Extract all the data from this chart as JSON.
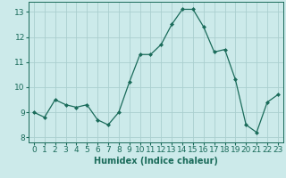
{
  "x": [
    0,
    1,
    2,
    3,
    4,
    5,
    6,
    7,
    8,
    9,
    10,
    11,
    12,
    13,
    14,
    15,
    16,
    17,
    18,
    19,
    20,
    21,
    22,
    23
  ],
  "y": [
    9.0,
    8.8,
    9.5,
    9.3,
    9.2,
    9.3,
    8.7,
    8.5,
    9.0,
    10.2,
    11.3,
    11.3,
    11.7,
    12.5,
    13.1,
    13.1,
    12.4,
    11.4,
    11.5,
    10.3,
    8.5,
    8.2,
    9.4,
    9.7
  ],
  "xlabel": "Humidex (Indice chaleur)",
  "ylabel": "",
  "xlim": [
    -0.5,
    23.5
  ],
  "ylim": [
    7.8,
    13.4
  ],
  "yticks": [
    8,
    9,
    10,
    11,
    12,
    13
  ],
  "xticks": [
    0,
    1,
    2,
    3,
    4,
    5,
    6,
    7,
    8,
    9,
    10,
    11,
    12,
    13,
    14,
    15,
    16,
    17,
    18,
    19,
    20,
    21,
    22,
    23
  ],
  "line_color": "#1a6b5a",
  "marker_color": "#1a6b5a",
  "bg_color": "#cceaea",
  "grid_color": "#aacfcf",
  "xlabel_fontsize": 7,
  "tick_fontsize": 6.5
}
